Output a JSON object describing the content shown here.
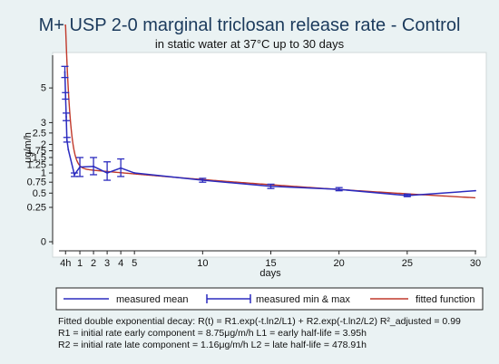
{
  "chart_data": {
    "type": "line",
    "title": "M+ USP 2-0   marginal triclosan release rate - Control",
    "subtitle": "in static water at 37°C up to 30 days",
    "xlabel": "days",
    "ylabel": "μg/m/h",
    "xlim": [
      -0.2,
      30
    ],
    "ylim": [
      0,
      7
    ],
    "y_scale": "sqrt",
    "x_ticks": [
      {
        "value": -0.05,
        "label": "4h"
      },
      {
        "value": 1,
        "label": "1"
      },
      {
        "value": 2,
        "label": "2"
      },
      {
        "value": 3,
        "label": "3"
      },
      {
        "value": 4,
        "label": "4"
      },
      {
        "value": 5,
        "label": "5"
      },
      {
        "value": 10,
        "label": "10"
      },
      {
        "value": 15,
        "label": "15"
      },
      {
        "value": 20,
        "label": "20"
      },
      {
        "value": 25,
        "label": "25"
      },
      {
        "value": 30,
        "label": "30"
      }
    ],
    "y_ticks": [
      {
        "value": 0,
        "label": "0"
      },
      {
        "value": 0.25,
        "label": "0.25"
      },
      {
        "value": 0.5,
        "label": "0.5"
      },
      {
        "value": 0.75,
        "label": "0.75"
      },
      {
        "value": 1,
        "label": "1"
      },
      {
        "value": 1.25,
        "label": "1.25"
      },
      {
        "value": 1.5,
        "label": "1.5"
      },
      {
        "value": 1.75,
        "label": "1.75"
      },
      {
        "value": 2,
        "label": "2"
      },
      {
        "value": 2.5,
        "label": "2.5"
      },
      {
        "value": 3,
        "label": "3"
      },
      {
        "value": 5,
        "label": "5"
      }
    ],
    "series": [
      {
        "name": "measured mean",
        "color": "#2b2bbf",
        "points": [
          {
            "x": -0.1,
            "y": 6.1
          },
          {
            "x": -0.05,
            "y": 4.5
          },
          {
            "x": 0.0,
            "y": 3.3
          },
          {
            "x": 0.05,
            "y": 2.2
          },
          {
            "x": 0.15,
            "y": 1.8
          },
          {
            "x": 0.6,
            "y": 0.95
          },
          {
            "x": 1,
            "y": 1.18
          },
          {
            "x": 2,
            "y": 1.2
          },
          {
            "x": 3,
            "y": 1.0
          },
          {
            "x": 4,
            "y": 1.15
          },
          {
            "x": 5,
            "y": 1.0
          },
          {
            "x": 10,
            "y": 0.8
          },
          {
            "x": 15,
            "y": 0.65
          },
          {
            "x": 20,
            "y": 0.58
          },
          {
            "x": 25,
            "y": 0.45
          },
          {
            "x": 30,
            "y": 0.55
          }
        ]
      },
      {
        "name": "measured min & max",
        "color": "#2b2bbf",
        "bars": [
          {
            "x": -0.1,
            "min": 5.7,
            "max": 6.5
          },
          {
            "x": -0.05,
            "min": 4.3,
            "max": 4.7
          },
          {
            "x": 0.0,
            "min": 3.1,
            "max": 3.5
          },
          {
            "x": 0.05,
            "min": 2.1,
            "max": 2.3
          },
          {
            "x": 0.6,
            "min": 0.9,
            "max": 1.0
          },
          {
            "x": 1,
            "min": 0.9,
            "max": 1.5
          },
          {
            "x": 2,
            "min": 0.95,
            "max": 1.5
          },
          {
            "x": 3,
            "min": 0.8,
            "max": 1.35
          },
          {
            "x": 4,
            "min": 0.9,
            "max": 1.45
          },
          {
            "x": 10,
            "min": 0.75,
            "max": 0.85
          },
          {
            "x": 15,
            "min": 0.6,
            "max": 0.7
          },
          {
            "x": 20,
            "min": 0.55,
            "max": 0.62
          },
          {
            "x": 25,
            "min": 0.43,
            "max": 0.48
          }
        ]
      },
      {
        "name": "fitted function",
        "color": "#c0392b",
        "formula": {
          "R1": 8.75,
          "L1_days": 0.1646,
          "R2": 1.16,
          "L2_days": 19.955
        }
      }
    ],
    "legend_position": "bottom",
    "grid": false
  },
  "annotations": [
    "Fitted double exponential decay: R(t) = R1.exp(-t.ln2/L1) + R2.exp(-t.ln2/L2) R²_adjusted = 0.99",
    "R1 = initial rate early component = 8.75μg/m/h  L1 = early half-life = 3.95h",
    "R2 = initial rate late component = 1.16μg/m/h  L2 = late half-life = 478.91h"
  ]
}
